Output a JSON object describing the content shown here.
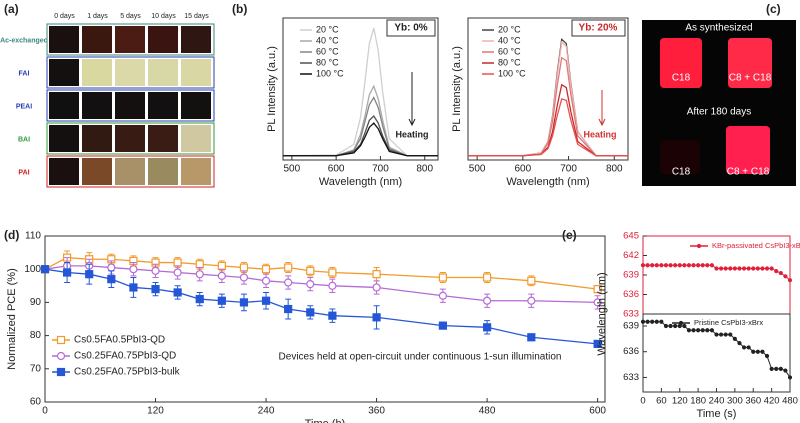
{
  "panel_labels": [
    "(a)",
    "(b)",
    "(c)",
    "(d)",
    "(e)"
  ],
  "panel_a": {
    "columns": [
      "0 days",
      "1 days",
      "5 days",
      "10 days",
      "15 days"
    ],
    "rows": [
      "Ac-exchanged",
      "FAI",
      "PEAI",
      "BAI",
      "PAI"
    ]
  },
  "panel_c": {
    "top_caption": "As synthesized",
    "top_left": "C18",
    "top_right": "C8 + C18",
    "bottom_caption": "After 180 days",
    "bottom_left": "C18",
    "bottom_right": "C8 + C18"
  },
  "chart_data": [
    {
      "type": "line",
      "annotation": "Yb: 0%",
      "arrow_label": "Heating",
      "xlabel": "Wavelength (nm)",
      "ylabel": "PL Intensity (a.u.)",
      "xlim": [
        480,
        830
      ],
      "ylim": [
        0,
        1
      ],
      "xticks": [
        500,
        600,
        700,
        800
      ],
      "x": [
        480,
        600,
        640,
        655,
        665,
        675,
        685,
        695,
        705,
        720,
        760,
        830
      ],
      "series": [
        {
          "name": "20 °C",
          "color": "#cfcfcf",
          "values": [
            0.03,
            0.035,
            0.11,
            0.3,
            0.55,
            0.82,
            0.93,
            0.77,
            0.48,
            0.15,
            0.03,
            0.03
          ]
        },
        {
          "name": "40 °C",
          "color": "#a9a9a9",
          "values": [
            0.03,
            0.03,
            0.07,
            0.18,
            0.31,
            0.46,
            0.52,
            0.43,
            0.28,
            0.09,
            0.03,
            0.03
          ]
        },
        {
          "name": "60 °C",
          "color": "#858585",
          "values": [
            0.03,
            0.03,
            0.07,
            0.15,
            0.27,
            0.39,
            0.44,
            0.37,
            0.24,
            0.08,
            0.03,
            0.03
          ]
        },
        {
          "name": "80 °C",
          "color": "#505050",
          "values": [
            0.03,
            0.03,
            0.06,
            0.11,
            0.19,
            0.28,
            0.31,
            0.26,
            0.17,
            0.07,
            0.03,
            0.03
          ]
        },
        {
          "name": "100 °C",
          "color": "#111111",
          "values": [
            0.03,
            0.03,
            0.05,
            0.1,
            0.16,
            0.23,
            0.26,
            0.22,
            0.15,
            0.06,
            0.03,
            0.03
          ]
        }
      ]
    },
    {
      "type": "line",
      "annotation": "Yb: 20%",
      "arrow_label": "Heating",
      "xlabel": "Wavelength (nm)",
      "ylabel": "PL Intensity (a.u.)",
      "xlim": [
        480,
        830
      ],
      "ylim": [
        0,
        1
      ],
      "xticks": [
        500,
        600,
        700,
        800
      ],
      "x": [
        480,
        600,
        640,
        655,
        665,
        675,
        685,
        695,
        705,
        720,
        760,
        830
      ],
      "series": [
        {
          "name": "20 °C",
          "color": "#444444",
          "values": [
            0.03,
            0.03,
            0.05,
            0.13,
            0.31,
            0.61,
            0.85,
            0.82,
            0.54,
            0.2,
            0.03,
            0.03
          ]
        },
        {
          "name": "40 °C",
          "color": "#f0b0b0",
          "values": [
            0.03,
            0.03,
            0.05,
            0.13,
            0.3,
            0.59,
            0.83,
            0.8,
            0.53,
            0.2,
            0.03,
            0.03
          ]
        },
        {
          "name": "60 °C",
          "color": "#e07878",
          "values": [
            0.03,
            0.03,
            0.04,
            0.12,
            0.27,
            0.52,
            0.72,
            0.7,
            0.46,
            0.17,
            0.03,
            0.03
          ]
        },
        {
          "name": "80 °C",
          "color": "#c82828",
          "values": [
            0.03,
            0.03,
            0.04,
            0.09,
            0.2,
            0.38,
            0.53,
            0.51,
            0.34,
            0.13,
            0.03,
            0.03
          ]
        },
        {
          "name": "100 °C",
          "color": "#e85050",
          "values": [
            0.03,
            0.03,
            0.04,
            0.08,
            0.17,
            0.31,
            0.43,
            0.42,
            0.28,
            0.11,
            0.03,
            0.03
          ]
        }
      ]
    },
    {
      "type": "line",
      "annotation": "Devices held at open-circuit under continuous 1-sun illumination",
      "xlabel": "Time (h)",
      "ylabel": "Normalized PCE (%)",
      "xlim": [
        0,
        608
      ],
      "ylim": [
        60,
        110
      ],
      "xticks": [
        0,
        120,
        240,
        360,
        480,
        600
      ],
      "yticks": [
        60,
        70,
        80,
        90,
        100,
        110
      ],
      "legend": "lower left",
      "x": [
        0,
        24,
        48,
        72,
        96,
        120,
        144,
        168,
        192,
        216,
        240,
        264,
        288,
        312,
        360,
        432,
        480,
        528,
        600
      ],
      "series": [
        {
          "name": "Cs0.5FA0.5PbI3-QD",
          "color": "#f39a2b",
          "marker": "square-open",
          "values": [
            100,
            103.5,
            103,
            103,
            102.5,
            102,
            102,
            101.5,
            101,
            100.5,
            100,
            100.5,
            99.5,
            99,
            98.5,
            97.5,
            97.5,
            96.5,
            94
          ],
          "errors": [
            1,
            2,
            2,
            1.5,
            1.5,
            1.5,
            1.5,
            1.5,
            1.5,
            1.5,
            1.5,
            1.5,
            1.5,
            1.5,
            2,
            1.5,
            1.5,
            1.5,
            1
          ]
        },
        {
          "name": "Cs0.25FA0.75PbI3-QD",
          "color": "#b56ad6",
          "marker": "circle-open",
          "values": [
            100,
            101,
            101,
            100.5,
            100,
            99.5,
            99,
            98.5,
            98,
            97.5,
            96.5,
            96,
            95.5,
            95,
            94.5,
            92,
            90.5,
            90.5,
            90
          ],
          "errors": [
            1,
            2.5,
            2,
            2,
            2,
            2,
            2,
            2,
            2,
            2,
            2,
            2,
            2,
            2,
            2,
            2,
            2,
            2,
            2
          ]
        },
        {
          "name": "Cs0.25FA0.75PbI3-bulk",
          "color": "#2457d6",
          "marker": "square",
          "values": [
            100,
            99,
            98.5,
            97,
            94.5,
            94,
            93,
            91,
            90.5,
            90,
            90.5,
            88,
            87,
            86,
            85.5,
            83,
            82.5,
            79.5,
            77.5
          ],
          "errors": [
            1,
            3,
            3,
            2.5,
            3,
            2,
            2,
            2,
            2,
            2.5,
            2.5,
            3,
            2,
            2,
            3.5,
            1,
            2,
            1,
            1
          ]
        }
      ]
    },
    {
      "type": "line",
      "xlim": [
        0,
        480
      ],
      "ylim": [
        633,
        645
      ],
      "yticks": [
        633,
        636,
        639,
        642,
        645
      ],
      "x": [
        0,
        15,
        30,
        45,
        60,
        75,
        90,
        105,
        120,
        135,
        150,
        165,
        180,
        195,
        210,
        225,
        240,
        255,
        270,
        285,
        300,
        315,
        330,
        345,
        360,
        375,
        390,
        405,
        420,
        435,
        450,
        465,
        480
      ],
      "series": [
        {
          "name": "KBr-passivated CsPbI3-xBrx",
          "color": "#e0203a",
          "marker": "circle",
          "values": [
            640.5,
            640.5,
            640.5,
            640.5,
            640.5,
            640.5,
            640.5,
            640.5,
            640.5,
            640.5,
            640.5,
            640.5,
            640.5,
            640.5,
            640.5,
            640.5,
            640,
            640,
            640,
            640,
            640,
            640,
            640,
            640,
            640,
            640,
            640,
            640,
            640,
            639.6,
            639.3,
            638.8,
            638.2
          ]
        }
      ]
    },
    {
      "type": "line",
      "xlabel": "Time (s)",
      "ylabel": "Wavelength (nm)",
      "xlim": [
        0,
        480
      ],
      "ylim": [
        631.3,
        640.4
      ],
      "xticks": [
        0,
        60,
        120,
        180,
        240,
        300,
        360,
        420,
        480
      ],
      "yticks": [
        633,
        636,
        639
      ],
      "x": [
        0,
        15,
        30,
        45,
        60,
        75,
        90,
        105,
        120,
        135,
        150,
        165,
        180,
        195,
        210,
        225,
        240,
        255,
        270,
        285,
        300,
        315,
        330,
        345,
        360,
        375,
        390,
        405,
        420,
        435,
        450,
        465,
        480
      ],
      "series": [
        {
          "name": "Pristine CsPbI3-xBrx",
          "color": "#222222",
          "marker": "circle",
          "values": [
            639.5,
            639.5,
            639.5,
            639.5,
            639.5,
            639,
            639,
            639,
            639,
            639,
            638.5,
            638.5,
            638.5,
            638.5,
            638.5,
            638.5,
            638,
            638,
            638,
            638,
            637.5,
            637,
            636.5,
            636.5,
            636,
            636,
            636,
            635.5,
            634,
            634,
            634,
            633.8,
            633
          ]
        }
      ]
    }
  ]
}
